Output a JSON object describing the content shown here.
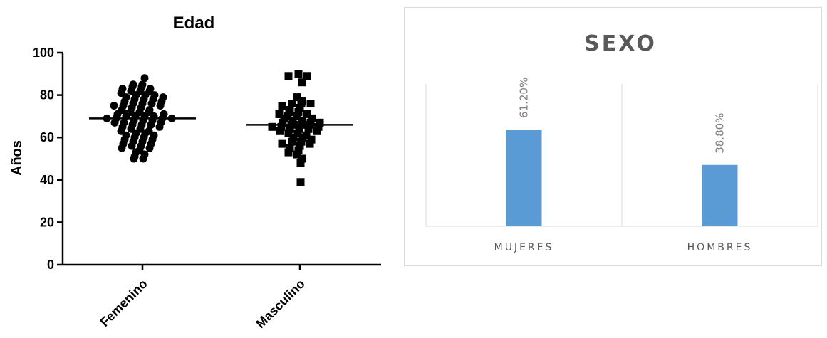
{
  "chart_data": [
    {
      "type": "scatter",
      "title": "Edad",
      "xlabel": "",
      "ylabel": "Años",
      "ylim": [
        0,
        100
      ],
      "yticks": [
        0,
        20,
        40,
        60,
        80,
        100
      ],
      "categories": [
        "Femenino",
        "Masculino"
      ],
      "marker_shapes": [
        "circle",
        "square"
      ],
      "marker_color": "#000000",
      "medians": [
        69,
        66
      ],
      "series": [
        {
          "values": [
            88,
            85,
            85,
            84,
            84,
            83,
            83,
            82,
            82,
            82,
            81,
            80,
            80,
            80,
            79,
            79,
            78,
            78,
            78,
            77,
            77,
            76,
            76,
            76,
            75,
            75,
            75,
            74,
            74,
            73,
            73,
            72,
            72,
            72,
            71,
            71,
            71,
            70,
            70,
            70,
            70,
            69,
            69,
            69,
            69,
            68,
            68,
            68,
            67,
            67,
            67,
            66,
            66,
            66,
            65,
            65,
            64,
            64,
            63,
            63,
            62,
            62,
            61,
            61,
            60,
            60,
            59,
            59,
            58,
            58,
            57,
            57,
            56,
            56,
            55,
            55,
            54,
            53,
            52,
            51,
            50,
            50
          ]
        },
        {
          "values": [
            90,
            89,
            89,
            86,
            79,
            77,
            76,
            76,
            76,
            75,
            74,
            73,
            72,
            72,
            71,
            71,
            70,
            70,
            69,
            69,
            68,
            68,
            67,
            67,
            67,
            66,
            66,
            66,
            65,
            65,
            65,
            64,
            64,
            64,
            63,
            63,
            62,
            62,
            61,
            60,
            60,
            59,
            58,
            58,
            57,
            57,
            56,
            55,
            54,
            53,
            52,
            50,
            48,
            39
          ]
        }
      ]
    },
    {
      "type": "bar",
      "title": "SEXO",
      "xlabel": "",
      "ylabel": "",
      "categories": [
        "MUJERES",
        "HOMBRES"
      ],
      "values": [
        61.2,
        38.8
      ],
      "data_labels": [
        "61.20%",
        "38.80%"
      ],
      "ylim": [
        0,
        90
      ],
      "bar_color": "#5b9bd5"
    }
  ]
}
